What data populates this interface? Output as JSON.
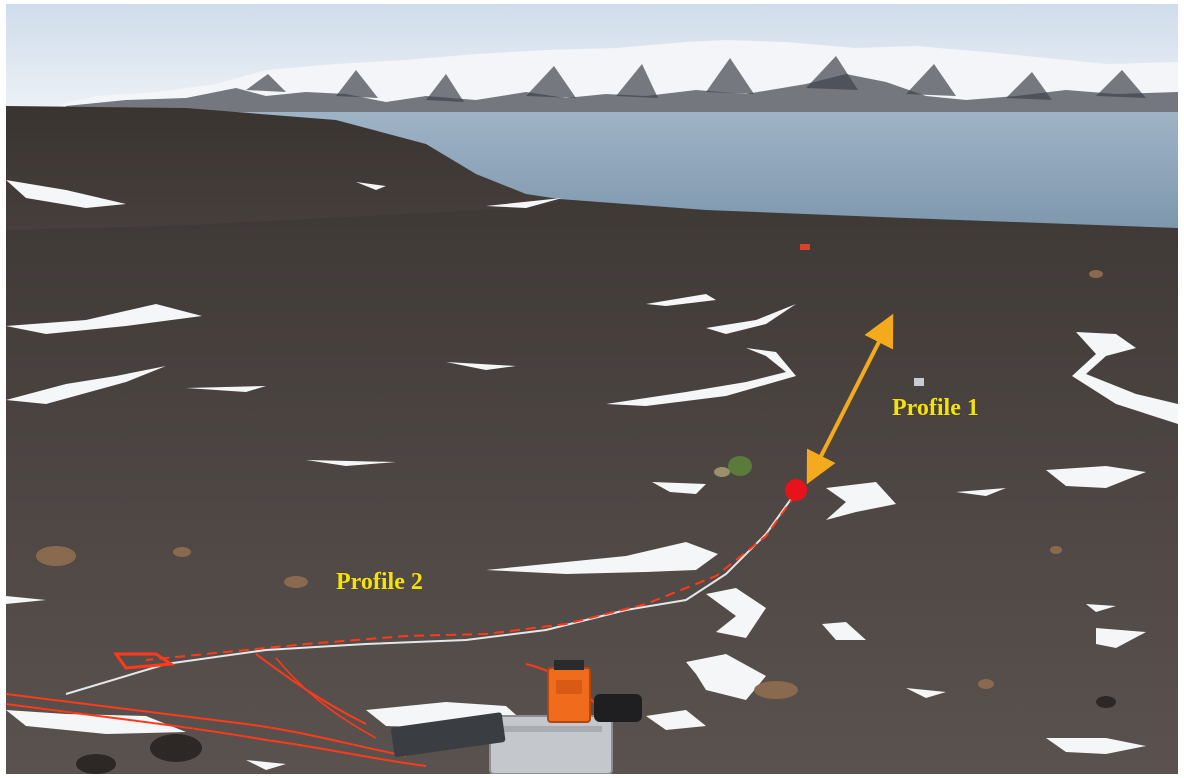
{
  "labels": {
    "profile_1": "Profile 1",
    "profile_2": "Profile 2"
  },
  "colors": {
    "label_text": "#f5e20a",
    "arrow": "#f5a91c",
    "marker": "#e8121b",
    "cable": "#ff3a1a",
    "sky": "#dfe9f3",
    "sea": "#8fa7bd",
    "ground": "#4a4441",
    "snow": "#f4f6f8"
  },
  "icons": {
    "arrow": "double-headed-arrow-icon",
    "marker": "red-dot-marker-icon"
  }
}
